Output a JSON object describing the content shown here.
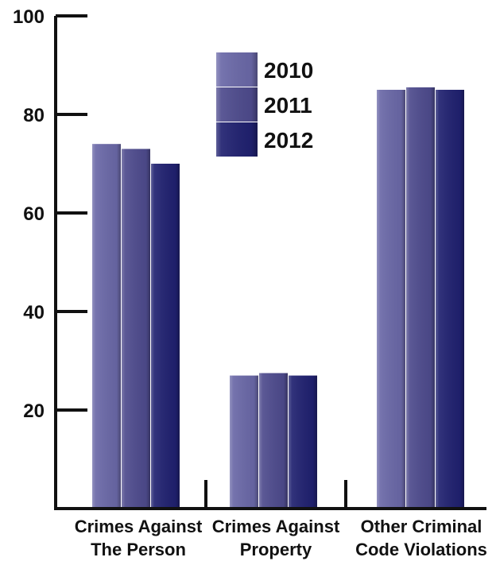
{
  "chart_data": {
    "type": "bar",
    "title": "",
    "xlabel": "",
    "ylabel": "",
    "ylim": [
      0,
      100
    ],
    "yticks": [
      20,
      40,
      60,
      80,
      100
    ],
    "categories": [
      [
        "Crimes Against",
        "The Person"
      ],
      [
        "Crimes Against",
        "Property"
      ],
      [
        "Other Criminal",
        "Code Violations"
      ]
    ],
    "series": [
      {
        "name": "2010",
        "color": "#6a68a7",
        "values": [
          74,
          27,
          85
        ]
      },
      {
        "name": "2011",
        "color": "#4e4b8d",
        "values": [
          73,
          27.5,
          85.5
        ]
      },
      {
        "name": "2012",
        "color": "#202170",
        "values": [
          70,
          27,
          85
        ]
      }
    ],
    "legend_position": "top-center",
    "grid": false
  }
}
